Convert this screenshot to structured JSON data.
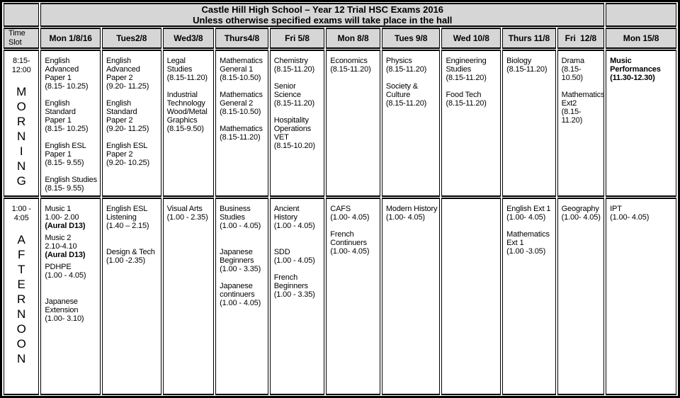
{
  "title": {
    "line1": "Castle Hill High School – Year 12 Trial HSC Exams 2016",
    "line2": "Unless otherwise specified exams will take place in the hall"
  },
  "columns": [
    "Time Slot",
    "Mon 1/8/16",
    "Tues2/8",
    "Wed3/8",
    "Thurs4/8",
    "Fri 5/8",
    "Mon 8/8",
    "Tues 9/8",
    "Wed 10/8",
    "Thurs 11/8",
    "Fri  12/8",
    "Mon 15/8"
  ],
  "rows": [
    {
      "slot": {
        "time": "8:15-12:00",
        "label": "MORNING"
      },
      "cells": [
        [
          {
            "name": "English Advanced Paper 1",
            "time": "(8.15- 10.25)"
          },
          {
            "name": "English Standard Paper 1",
            "time": "(8.15- 10.25)"
          },
          {
            "name": "English ESL Paper 1",
            "time": "(8.15- 9.55)"
          },
          {
            "name": "English Studies",
            "time": "(8.15- 9.55)"
          }
        ],
        [
          {
            "name": "English Advanced Paper 2",
            "time": "(9.20- 11.25)"
          },
          {
            "name": "English Standard Paper 2",
            "time": "(9.20- 11.25)"
          },
          {
            "name": "English ESL Paper 2",
            "time": "(9.20- 10.25)"
          }
        ],
        [
          {
            "name": "Legal Studies",
            "time": "(8.15-11.20)"
          },
          {
            "name": "Industrial Technology Wood/Metal Graphics",
            "time": "(8.15-9.50)"
          }
        ],
        [
          {
            "name": "Mathematics General 1",
            "time": "(8.15-10.50)"
          },
          {
            "name": "Mathematics General 2",
            "time": "(8.15-10.50)"
          },
          {
            "name": "Mathematics",
            "time": "(8.15-11.20)"
          }
        ],
        [
          {
            "name": "Chemistry",
            "time": "(8.15-11.20)"
          },
          {
            "name": "Senior Science",
            "time": "(8.15-11.20)"
          },
          {
            "name": "Hospitality Operations VET",
            "time": "(8.15-10.20)"
          }
        ],
        [
          {
            "name": "Economics",
            "time": "(8.15-11.20)"
          }
        ],
        [
          {
            "name": "Physics",
            "time": "(8.15-11.20)"
          },
          {
            "name": "Society & Culture",
            "time": "(8.15-11.20)"
          }
        ],
        [
          {
            "name": "Engineering Studies",
            "time": "(8.15-11.20)"
          },
          {
            "name": "Food Tech",
            "time": "(8.15-11.20)"
          }
        ],
        [
          {
            "name": "Biology",
            "time": "(8.15-11.20)"
          }
        ],
        [
          {
            "name": "Drama",
            "time": "(8.15-10.50)"
          },
          {
            "name": "Mathematics Ext2",
            "time": "(8.15-11.20)"
          }
        ],
        [
          {
            "name": "Music Performances",
            "time": "(11.30-12.30)",
            "bold": true
          }
        ]
      ]
    },
    {
      "slot": {
        "time": "1:00 - 4:05",
        "label": "AFTERNOON"
      },
      "cells": [
        [
          {
            "name": "Music 1",
            "time": "1.00- 2.00",
            "note": "(Aural D13)"
          },
          {
            "name": "Music 2",
            "time": "2.10-4.10",
            "note": "(Aural D13)",
            "gap": "sm"
          },
          {
            "name": "PDHPE",
            "time": "(1.00 - 4.05)",
            "gap": "sm"
          },
          {
            "name": "Japanese Extension",
            "time": "(1.00- 3.10)",
            "gap": "lg"
          }
        ],
        [
          {
            "name": "English ESL Listening",
            "time": "(1.40 – 2.15)"
          },
          {
            "name": "Design & Tech",
            "time": "(1.00 -2.35)",
            "gap": "lg"
          }
        ],
        [
          {
            "name": "Visual Arts",
            "time": "(1.00 - 2.35)"
          }
        ],
        [
          {
            "name": "Business Studies",
            "time": "(1.00 - 4.05)"
          },
          {
            "name": "Japanese Beginners",
            "time": "(1.00 - 3.35)",
            "gap": "lg"
          },
          {
            "name": "Japanese continuers",
            "time": "(1.00 - 4.05)"
          }
        ],
        [
          {
            "name": "Ancient History",
            "time": "(1.00 - 4.05)"
          },
          {
            "name": "SDD",
            "time": "(1.00 - 4.05)",
            "gap": "lg"
          },
          {
            "name": "French Beginners",
            "time": "(1.00 - 3.35)"
          }
        ],
        [
          {
            "name": "CAFS",
            "time": "(1.00- 4.05)"
          },
          {
            "name": "French Continuers",
            "time": "(1.00- 4.05)"
          }
        ],
        [
          {
            "name": "Modern History",
            "time": "(1.00- 4.05)"
          }
        ],
        [],
        [
          {
            "name": "English Ext 1",
            "time": "(1.00- 4.05)"
          },
          {
            "name": "Mathematics Ext 1",
            "time": "(1.00 -3.05)"
          }
        ],
        [
          {
            "name": "Geography",
            "time": "(1.00- 4.05)"
          }
        ],
        [
          {
            "name": "IPT",
            "time": "(1.00- 4.05)"
          }
        ]
      ]
    }
  ],
  "colors": {
    "header_bg": "#d6d6d6",
    "cell_bg": "#ffffff",
    "border": "#000000",
    "text": "#000000"
  }
}
